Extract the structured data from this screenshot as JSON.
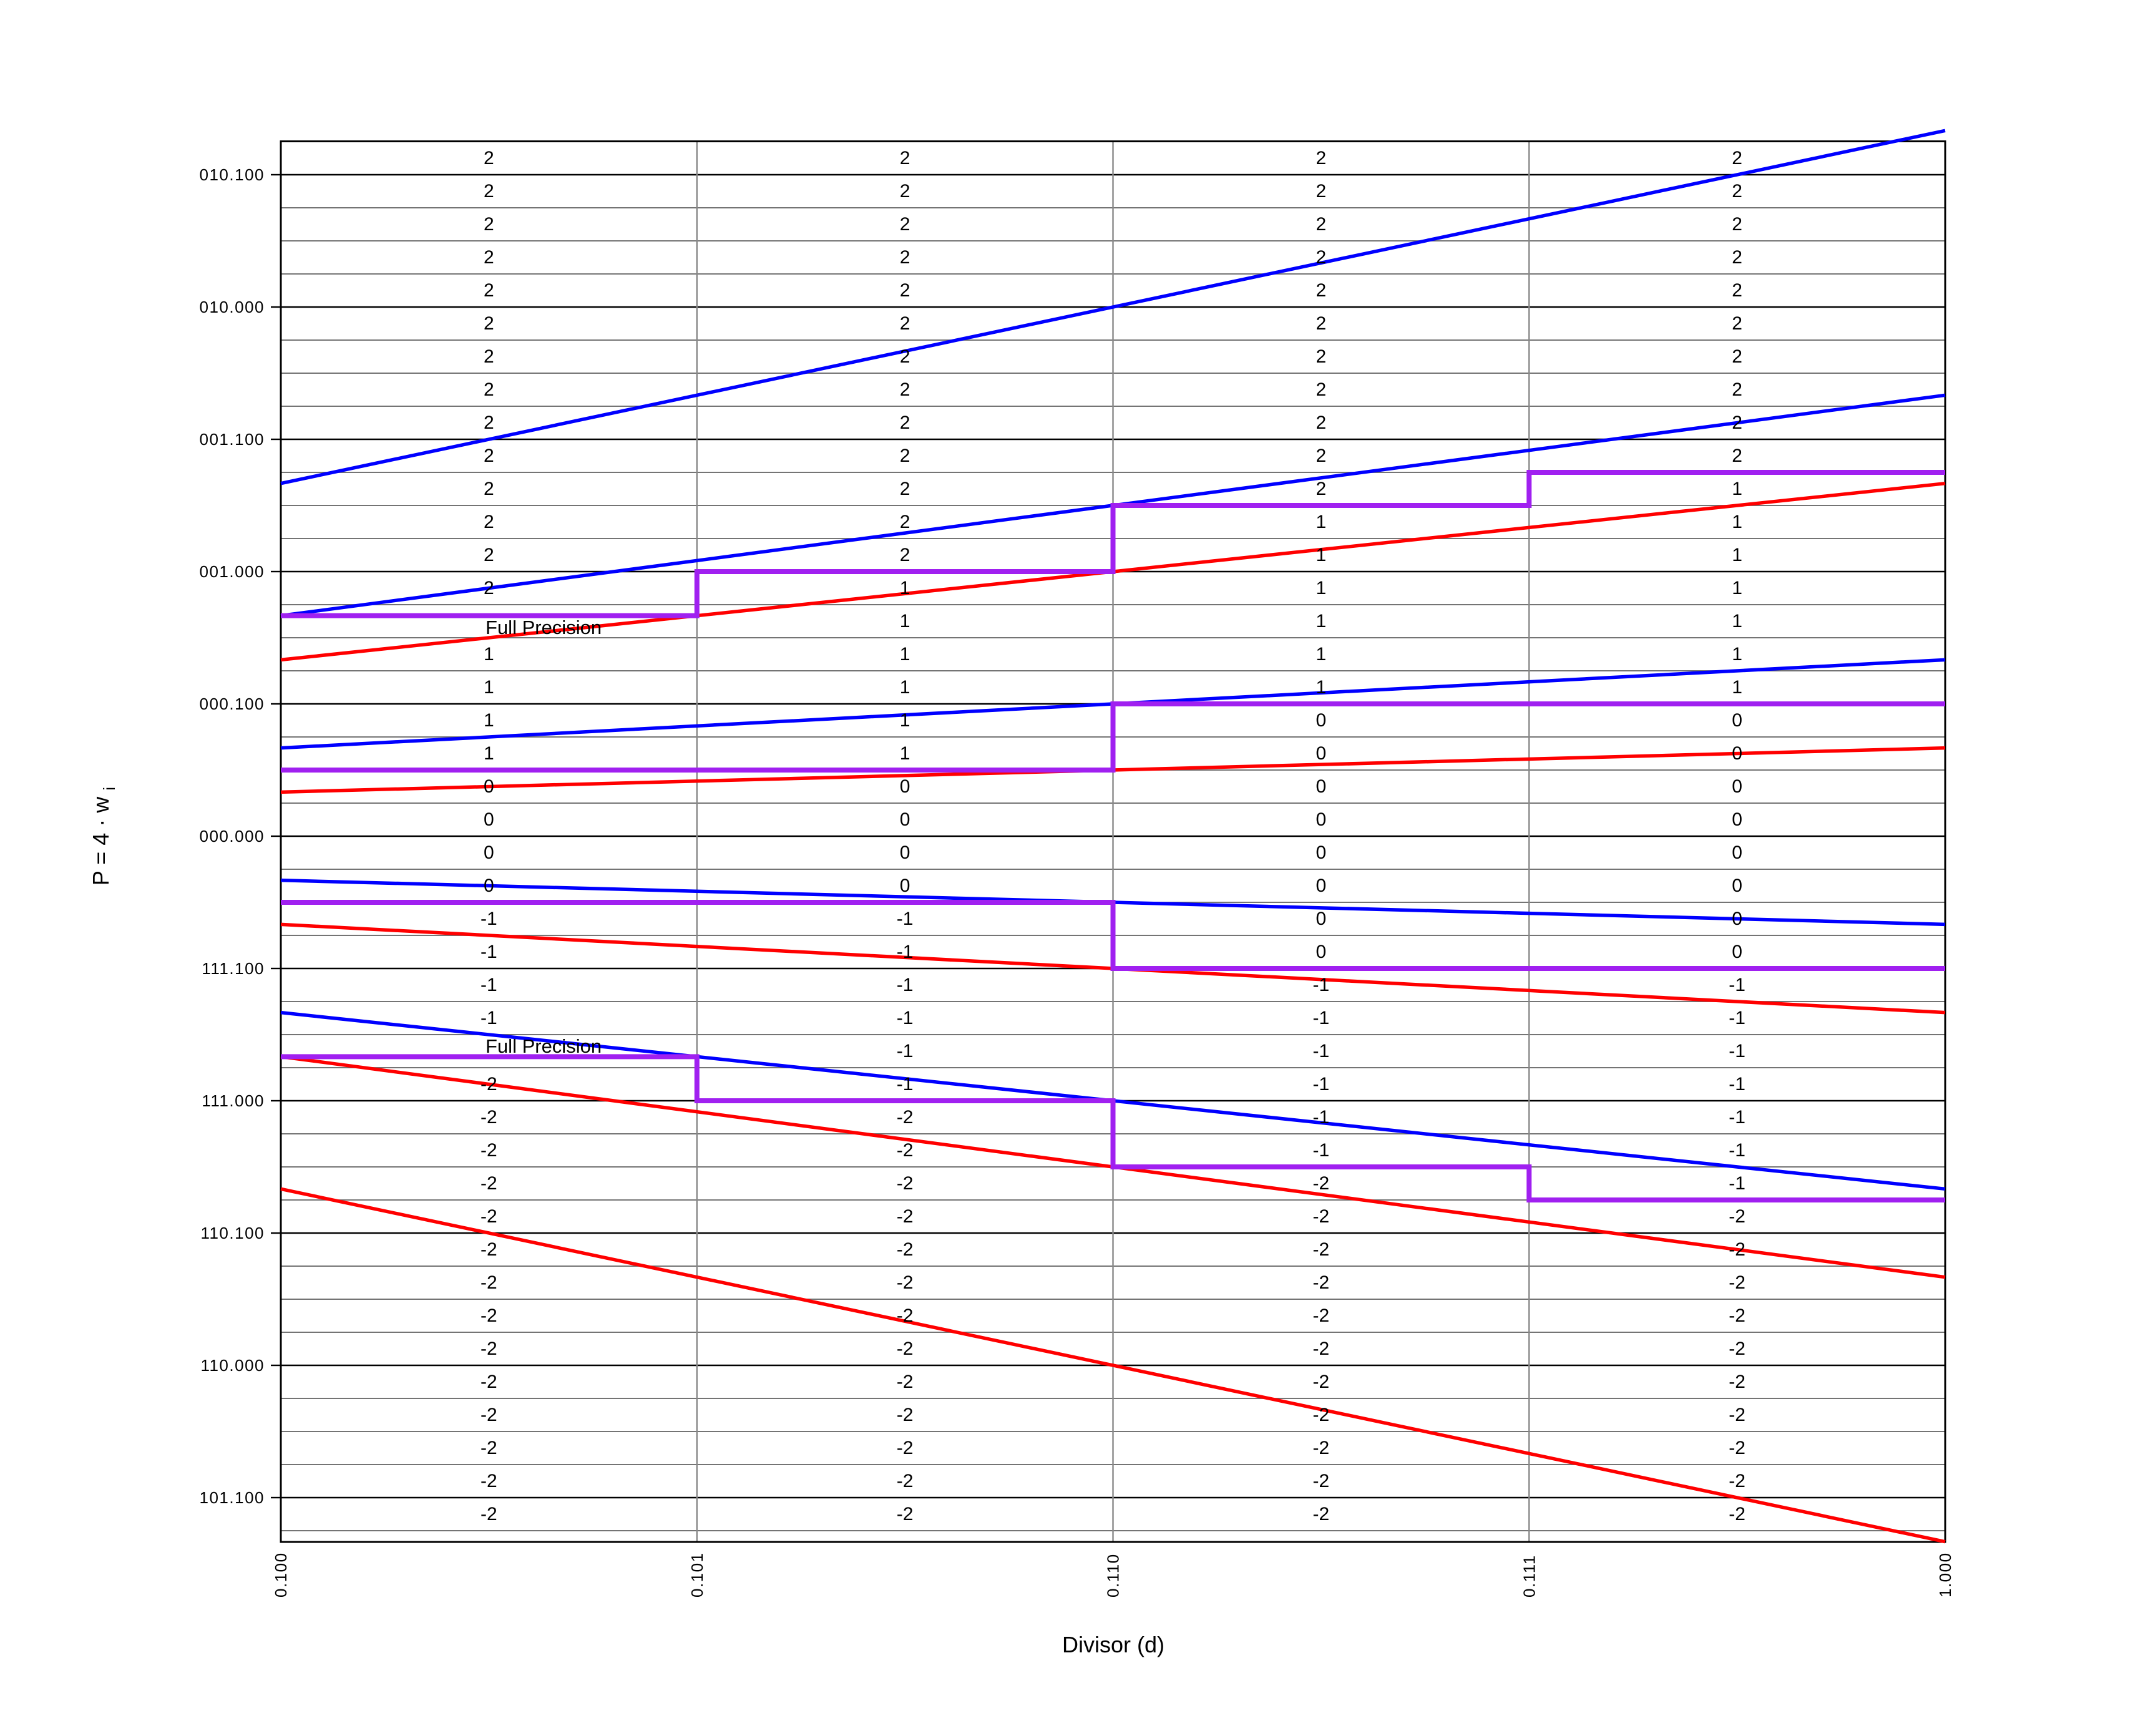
{
  "chart_data": {
    "type": "line",
    "title": "",
    "xlabel": "Divisor (d)",
    "ylabel": "P = 4 · w_i",
    "ylabel_main": "P = 4 · w",
    "ylabel_sub": "i",
    "xlim": [
      0.5,
      1.0
    ],
    "ylim": [
      -2.6667,
      2.625
    ],
    "grid": "on",
    "x_axis": {
      "tick_labels": [
        "0.100",
        "0.101",
        "0.110",
        "0.111",
        "1.000"
      ],
      "tick_values": [
        0.5,
        0.625,
        0.75,
        0.875,
        1.0
      ]
    },
    "y_axis": {
      "tick_labels": [
        "010.100",
        "010.000",
        "001.100",
        "001.000",
        "000.100",
        "000.000",
        "111.100",
        "111.000",
        "110.100",
        "110.000",
        "101.100"
      ],
      "tick_values": [
        2.5,
        2.0,
        1.5,
        1.0,
        0.5,
        0.0,
        -0.5,
        -1.0,
        -1.5,
        -2.0,
        -2.5
      ]
    },
    "minor_grid_step_y": 0.125,
    "series": [
      {
        "name": "digit-upper-bounds-blue",
        "color": "#0000ff",
        "kind": "P = slope·d over d in [0.5,1.0]",
        "slopes": [
          2.6667,
          1.6667,
          0.6667,
          -0.3333,
          -1.3333
        ]
      },
      {
        "name": "digit-lower-bounds-red",
        "color": "#ff0000",
        "kind": "P = slope·d over d in [0.5,1.0]",
        "slopes": [
          1.3333,
          0.3333,
          -0.6667,
          -1.6667,
          -2.6667
        ]
      }
    ],
    "staircases": {
      "color": "#a020f0",
      "paths": [
        [
          [
            0.5,
            0.8333
          ],
          [
            0.625,
            0.8333
          ],
          [
            0.625,
            1.0
          ],
          [
            0.75,
            1.0
          ],
          [
            0.75,
            1.25
          ],
          [
            0.875,
            1.25
          ],
          [
            0.875,
            1.375
          ],
          [
            1.0,
            1.375
          ]
        ],
        [
          [
            0.5,
            0.25
          ],
          [
            0.75,
            0.25
          ],
          [
            0.75,
            0.5
          ],
          [
            1.0,
            0.5
          ]
        ],
        [
          [
            0.5,
            -0.25
          ],
          [
            0.75,
            -0.25
          ],
          [
            0.75,
            -0.5
          ],
          [
            1.0,
            -0.5
          ]
        ],
        [
          [
            0.5,
            -0.8333
          ],
          [
            0.625,
            -0.8333
          ],
          [
            0.625,
            -1.0
          ],
          [
            0.75,
            -1.0
          ],
          [
            0.75,
            -1.25
          ],
          [
            0.875,
            -1.25
          ],
          [
            0.875,
            -1.375
          ],
          [
            1.0,
            -1.375
          ]
        ]
      ]
    },
    "annotations": [
      {
        "text": "Full Precision",
        "position": "quotient digit 1/2 boundary, first column"
      },
      {
        "text": "Full Precision",
        "position": "quotient digit -1/-2 boundary, first column"
      }
    ],
    "digit_grid": {
      "description": "quotient digit shown in each 0.125-tall P row per divisor column; row 0 is top (P 2.5..2.625), 42 rows; empty string = row occupied by Full Precision label",
      "row_top_p": 2.625,
      "row_height_p": 0.125,
      "columns": [
        [
          "2",
          "2",
          "2",
          "2",
          "2",
          "2",
          "2",
          "2",
          "2",
          "2",
          "2",
          "2",
          "2",
          "2",
          "",
          "1",
          "1",
          "1",
          "1",
          "0",
          "0",
          "0",
          "0",
          "-1",
          "-1",
          "-1",
          "-1",
          "",
          "-2",
          "-2",
          "-2",
          "-2",
          "-2",
          "-2",
          "-2",
          "-2",
          "-2",
          "-2",
          "-2",
          "-2",
          "-2",
          "-2"
        ],
        [
          "2",
          "2",
          "2",
          "2",
          "2",
          "2",
          "2",
          "2",
          "2",
          "2",
          "2",
          "2",
          "2",
          "1",
          "1",
          "1",
          "1",
          "1",
          "1",
          "0",
          "0",
          "0",
          "0",
          "-1",
          "-1",
          "-1",
          "-1",
          "-1",
          "-1",
          "-2",
          "-2",
          "-2",
          "-2",
          "-2",
          "-2",
          "-2",
          "-2",
          "-2",
          "-2",
          "-2",
          "-2",
          "-2"
        ],
        [
          "2",
          "2",
          "2",
          "2",
          "2",
          "2",
          "2",
          "2",
          "2",
          "2",
          "2",
          "1",
          "1",
          "1",
          "1",
          "1",
          "1",
          "0",
          "0",
          "0",
          "0",
          "0",
          "0",
          "0",
          "0",
          "-1",
          "-1",
          "-1",
          "-1",
          "-1",
          "-1",
          "-2",
          "-2",
          "-2",
          "-2",
          "-2",
          "-2",
          "-2",
          "-2",
          "-2",
          "-2",
          "-2"
        ],
        [
          "2",
          "2",
          "2",
          "2",
          "2",
          "2",
          "2",
          "2",
          "2",
          "2",
          "1",
          "1",
          "1",
          "1",
          "1",
          "1",
          "1",
          "0",
          "0",
          "0",
          "0",
          "0",
          "0",
          "0",
          "0",
          "-1",
          "-1",
          "-1",
          "-1",
          "-1",
          "-1",
          "-1",
          "-2",
          "-2",
          "-2",
          "-2",
          "-2",
          "-2",
          "-2",
          "-2",
          "-2",
          "-2"
        ]
      ]
    },
    "colors": {
      "blue_lines": "#0000ff",
      "red_lines": "#ff0000",
      "staircase": "#a020f0",
      "minor_grid": "#606060",
      "major_grid": "#000000",
      "vertical_grid": "#888888",
      "border": "#000000",
      "text": "#000000"
    }
  }
}
